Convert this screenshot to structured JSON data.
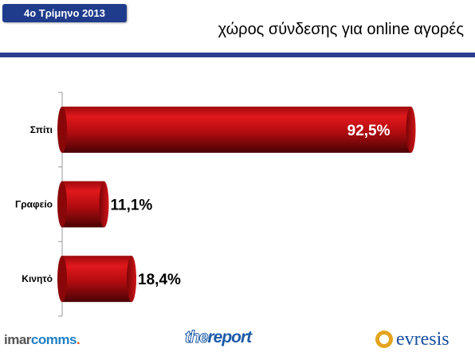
{
  "header": {
    "badge_label": "4ο Τρίμηνο 2013",
    "title": "χώρος σύνδεσης για online αγορές",
    "accent_color": "#2a3d8f"
  },
  "chart_data": {
    "type": "bar",
    "orientation": "horizontal",
    "title": "χώρος σύνδεσης για online αγορές",
    "categories": [
      "Σπίτι",
      "Γραφείο",
      "Κινητό"
    ],
    "values": [
      92.5,
      11.1,
      18.4
    ],
    "value_labels": [
      "92,5%",
      "11,1%",
      "18,4%"
    ],
    "unit": "%",
    "xlim": [
      0,
      100
    ],
    "bar_color": "#b80c10",
    "grid": false
  },
  "footer": {
    "logo_imar_a": "imar",
    "logo_imar_b": "comms",
    "logo_report_the": "the",
    "logo_report_rest": "report",
    "logo_evresis": "evresis"
  }
}
